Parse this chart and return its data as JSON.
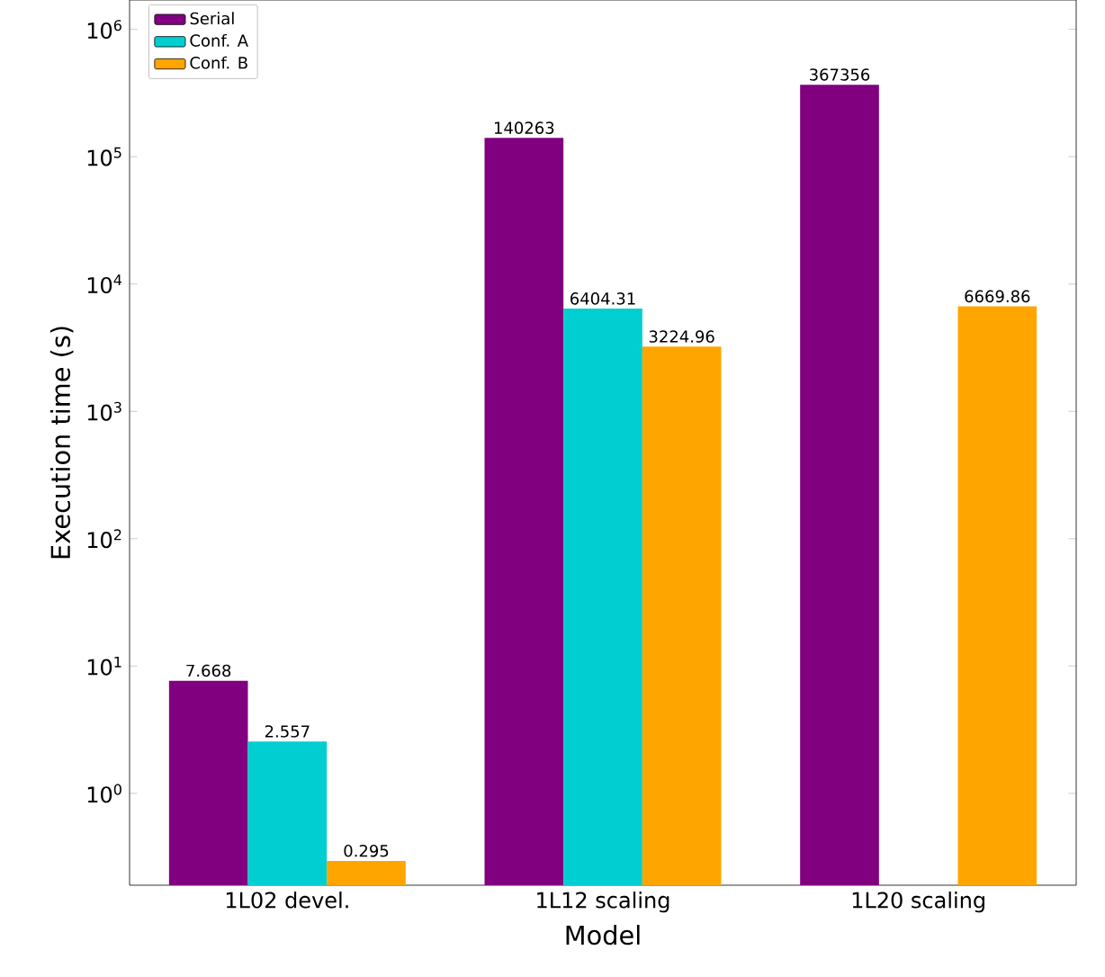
{
  "chart_data": {
    "type": "bar",
    "xlabel": "Model",
    "ylabel": "Execution time (s)",
    "categories": [
      "1L02 devel.",
      "1L12 scaling",
      "1L20 scaling"
    ],
    "series": [
      {
        "name": "Serial",
        "color": "#800080",
        "values": [
          7.668,
          140263,
          367356
        ]
      },
      {
        "name": "Conf. A",
        "color": "#00ced1",
        "values": [
          2.557,
          6404.31,
          null
        ]
      },
      {
        "name": "Conf. B",
        "color": "#ffa500",
        "values": [
          0.295,
          3224.96,
          6669.86
        ]
      }
    ],
    "log": "y",
    "ylim": [
      0.19,
      1700000
    ],
    "yticks": [
      {
        "value": 1,
        "label": "10$^{0}$"
      },
      {
        "value": 10,
        "label": "10$^{1}$"
      },
      {
        "value": 100,
        "label": "10$^{2}$"
      },
      {
        "value": 1000,
        "label": "10$^{3}$"
      },
      {
        "value": 10000,
        "label": "10$^{4}$"
      },
      {
        "value": 100000,
        "label": "10$^{5}$"
      },
      {
        "value": 1000000,
        "label": "10$^{6}$"
      }
    ],
    "data_labels": true,
    "legend": "top left",
    "grid": false
  }
}
